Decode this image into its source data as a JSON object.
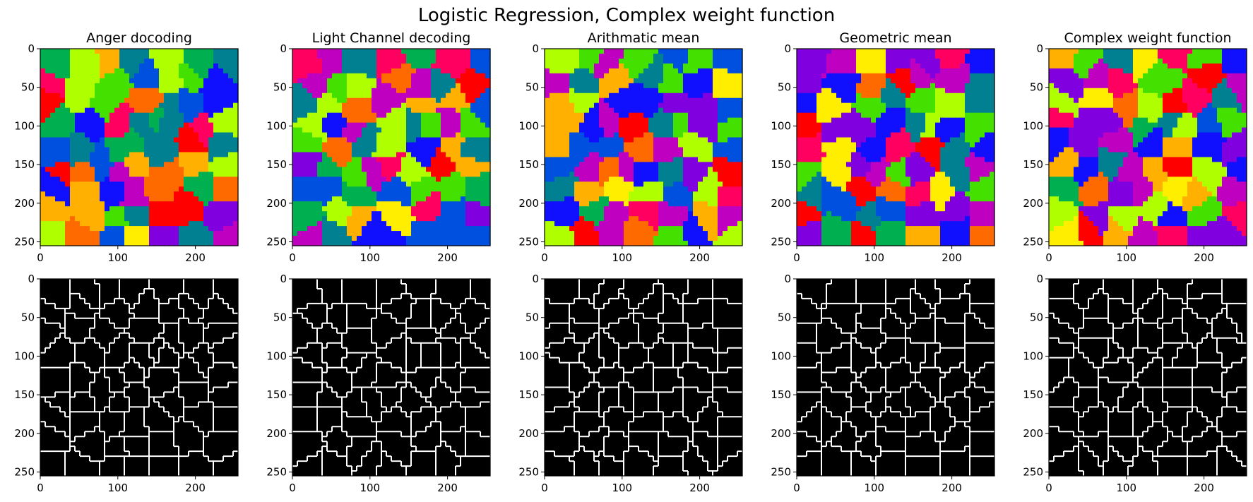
{
  "figure": {
    "title": "Logistic Regression, Complex weight function"
  },
  "chart_data": [
    {
      "type": "heatmap",
      "title": "Anger docoding",
      "render": "segmentation-colormap",
      "xlim": [
        0,
        255
      ],
      "ylim": [
        255,
        0
      ],
      "xticks": [
        0,
        100,
        200
      ],
      "yticks": [
        0,
        50,
        100,
        150,
        200,
        250
      ]
    },
    {
      "type": "heatmap",
      "title": "Light Channel decoding",
      "render": "segmentation-colormap",
      "xlim": [
        0,
        255
      ],
      "ylim": [
        255,
        0
      ],
      "xticks": [
        0,
        100,
        200
      ],
      "yticks": [
        0,
        50,
        100,
        150,
        200,
        250
      ]
    },
    {
      "type": "heatmap",
      "title": "Arithmatic mean",
      "render": "segmentation-colormap",
      "xlim": [
        0,
        255
      ],
      "ylim": [
        255,
        0
      ],
      "xticks": [
        0,
        100,
        200
      ],
      "yticks": [
        0,
        50,
        100,
        150,
        200,
        250
      ]
    },
    {
      "type": "heatmap",
      "title": "Geometric mean",
      "render": "segmentation-colormap",
      "xlim": [
        0,
        255
      ],
      "ylim": [
        255,
        0
      ],
      "xticks": [
        0,
        100,
        200
      ],
      "yticks": [
        0,
        50,
        100,
        150,
        200,
        250
      ]
    },
    {
      "type": "heatmap",
      "title": "Complex weight function",
      "render": "segmentation-colormap",
      "xlim": [
        0,
        255
      ],
      "ylim": [
        255,
        0
      ],
      "xticks": [
        0,
        100,
        200
      ],
      "yticks": [
        0,
        50,
        100,
        150,
        200,
        250
      ]
    },
    {
      "type": "heatmap",
      "title": "",
      "render": "boundary-map-binary",
      "xlim": [
        0,
        255
      ],
      "ylim": [
        255,
        0
      ],
      "xticks": [
        0,
        100,
        200
      ],
      "yticks": [
        0,
        50,
        100,
        150,
        200,
        250
      ]
    },
    {
      "type": "heatmap",
      "title": "",
      "render": "boundary-map-binary",
      "xlim": [
        0,
        255
      ],
      "ylim": [
        255,
        0
      ],
      "xticks": [
        0,
        100,
        200
      ],
      "yticks": [
        0,
        50,
        100,
        150,
        200,
        250
      ]
    },
    {
      "type": "heatmap",
      "title": "",
      "render": "boundary-map-binary",
      "xlim": [
        0,
        255
      ],
      "ylim": [
        255,
        0
      ],
      "xticks": [
        0,
        100,
        200
      ],
      "yticks": [
        0,
        50,
        100,
        150,
        200,
        250
      ]
    },
    {
      "type": "heatmap",
      "title": "",
      "render": "boundary-map-binary",
      "xlim": [
        0,
        255
      ],
      "ylim": [
        255,
        0
      ],
      "xticks": [
        0,
        100,
        200
      ],
      "yticks": [
        0,
        50,
        100,
        150,
        200,
        250
      ]
    },
    {
      "type": "heatmap",
      "title": "",
      "render": "boundary-map-binary",
      "xlim": [
        0,
        255
      ],
      "ylim": [
        255,
        0
      ],
      "xticks": [
        0,
        100,
        200
      ],
      "yticks": [
        0,
        50,
        100,
        150,
        200,
        250
      ]
    }
  ],
  "palette": {
    "segmentation": [
      "#ff0000",
      "#ff6a00",
      "#ffb000",
      "#ffee00",
      "#b0ff00",
      "#44e000",
      "#00b050",
      "#008090",
      "#0050e0",
      "#1010ff",
      "#8000e0",
      "#c000c0",
      "#ff0060"
    ],
    "boundary_background": "#000000",
    "boundary_line": "#ffffff"
  }
}
